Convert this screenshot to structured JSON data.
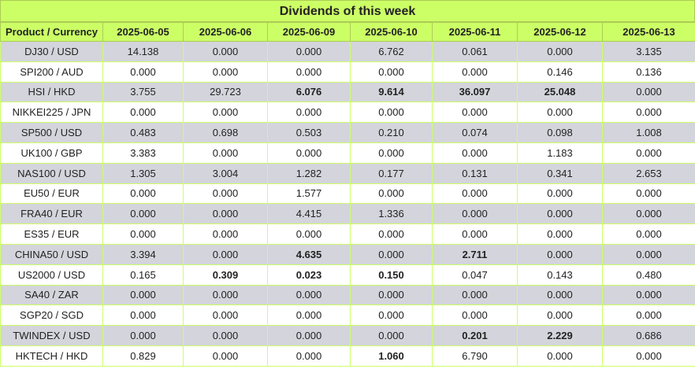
{
  "title": "Dividends of this week",
  "header": {
    "product_label": "Product / Currency",
    "dates": [
      "2025-06-05",
      "2025-06-06",
      "2025-06-09",
      "2025-06-10",
      "2025-06-11",
      "2025-06-12",
      "2025-06-13"
    ]
  },
  "rows": [
    {
      "product": "DJ30 / USD",
      "values": [
        "14.138",
        "0.000",
        "0.000",
        "6.762",
        "0.061",
        "0.000",
        "3.135"
      ],
      "bold": [
        false,
        false,
        false,
        false,
        false,
        false,
        false
      ]
    },
    {
      "product": "SPI200 / AUD",
      "values": [
        "0.000",
        "0.000",
        "0.000",
        "0.000",
        "0.000",
        "0.146",
        "0.136"
      ],
      "bold": [
        false,
        false,
        false,
        false,
        false,
        false,
        false
      ]
    },
    {
      "product": "HSI / HKD",
      "values": [
        "3.755",
        "29.723",
        "6.076",
        "9.614",
        "36.097",
        "25.048",
        "0.000"
      ],
      "bold": [
        false,
        false,
        true,
        true,
        true,
        true,
        false
      ]
    },
    {
      "product": "NIKKEI225 / JPN",
      "values": [
        "0.000",
        "0.000",
        "0.000",
        "0.000",
        "0.000",
        "0.000",
        "0.000"
      ],
      "bold": [
        false,
        false,
        false,
        false,
        false,
        false,
        false
      ]
    },
    {
      "product": "SP500 / USD",
      "values": [
        "0.483",
        "0.698",
        "0.503",
        "0.210",
        "0.074",
        "0.098",
        "1.008"
      ],
      "bold": [
        false,
        false,
        false,
        false,
        false,
        false,
        false
      ]
    },
    {
      "product": "UK100 / GBP",
      "values": [
        "3.383",
        "0.000",
        "0.000",
        "0.000",
        "0.000",
        "1.183",
        "0.000"
      ],
      "bold": [
        false,
        false,
        false,
        false,
        false,
        false,
        false
      ]
    },
    {
      "product": "NAS100 / USD",
      "values": [
        "1.305",
        "3.004",
        "1.282",
        "0.177",
        "0.131",
        "0.341",
        "2.653"
      ],
      "bold": [
        false,
        false,
        false,
        false,
        false,
        false,
        false
      ]
    },
    {
      "product": "EU50 / EUR",
      "values": [
        "0.000",
        "0.000",
        "1.577",
        "0.000",
        "0.000",
        "0.000",
        "0.000"
      ],
      "bold": [
        false,
        false,
        false,
        false,
        false,
        false,
        false
      ]
    },
    {
      "product": "FRA40 / EUR",
      "values": [
        "0.000",
        "0.000",
        "4.415",
        "1.336",
        "0.000",
        "0.000",
        "0.000"
      ],
      "bold": [
        false,
        false,
        false,
        false,
        false,
        false,
        false
      ]
    },
    {
      "product": "ES35 / EUR",
      "values": [
        "0.000",
        "0.000",
        "0.000",
        "0.000",
        "0.000",
        "0.000",
        "0.000"
      ],
      "bold": [
        false,
        false,
        false,
        false,
        false,
        false,
        false
      ]
    },
    {
      "product": "CHINA50 / USD",
      "values": [
        "3.394",
        "0.000",
        "4.635",
        "0.000",
        "2.711",
        "0.000",
        "0.000"
      ],
      "bold": [
        false,
        false,
        true,
        false,
        true,
        false,
        false
      ]
    },
    {
      "product": "US2000 / USD",
      "values": [
        "0.165",
        "0.309",
        "0.023",
        "0.150",
        "0.047",
        "0.143",
        "0.480"
      ],
      "bold": [
        false,
        true,
        true,
        true,
        false,
        false,
        false
      ]
    },
    {
      "product": "SA40 / ZAR",
      "values": [
        "0.000",
        "0.000",
        "0.000",
        "0.000",
        "0.000",
        "0.000",
        "0.000"
      ],
      "bold": [
        false,
        false,
        false,
        false,
        false,
        false,
        false
      ]
    },
    {
      "product": "SGP20 / SGD",
      "values": [
        "0.000",
        "0.000",
        "0.000",
        "0.000",
        "0.000",
        "0.000",
        "0.000"
      ],
      "bold": [
        false,
        false,
        false,
        false,
        false,
        false,
        false
      ]
    },
    {
      "product": "TWINDEX / USD",
      "values": [
        "0.000",
        "0.000",
        "0.000",
        "0.000",
        "0.201",
        "2.229",
        "0.686"
      ],
      "bold": [
        false,
        false,
        false,
        false,
        true,
        true,
        false
      ]
    },
    {
      "product": "HKTECH / HKD",
      "values": [
        "0.829",
        "0.000",
        "0.000",
        "1.060",
        "6.790",
        "0.000",
        "0.000"
      ],
      "bold": [
        false,
        false,
        false,
        true,
        false,
        false,
        false
      ]
    }
  ],
  "colors": {
    "header_bg": "#ccff66",
    "row_alt_bg": "#d4d4dc",
    "row_bg": "#ffffff",
    "grid_line": "#ccff66"
  }
}
